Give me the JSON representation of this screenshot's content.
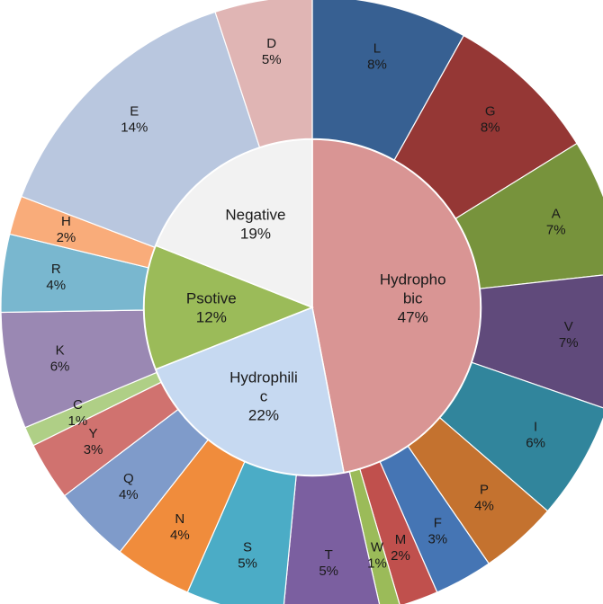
{
  "chart_data": {
    "type": "pie",
    "subtype": "sunburst",
    "title": "",
    "inner": [
      {
        "name": "Hydrophobic",
        "label_lines": [
          "Hydropho",
          "bic"
        ],
        "value": 47,
        "pct": "47%",
        "color": "#d99594"
      },
      {
        "name": "Hydrophilic",
        "label_lines": [
          "Hydrophili",
          "c"
        ],
        "value": 22,
        "pct": "22%",
        "color": "#c6d9f1"
      },
      {
        "name": "Psotive",
        "label_lines": [
          "Psotive"
        ],
        "value": 12,
        "pct": "12%",
        "color": "#9bbb59"
      },
      {
        "name": "Negative",
        "label_lines": [
          "Negative"
        ],
        "value": 19,
        "pct": "19%",
        "color": "#f2f2f2"
      }
    ],
    "outer": [
      {
        "name": "L",
        "value": 8,
        "pct": "8%",
        "color": "#376092",
        "group": "Hydrophobic"
      },
      {
        "name": "G",
        "value": 8,
        "pct": "8%",
        "color": "#953735",
        "group": "Hydrophobic"
      },
      {
        "name": "A",
        "value": 7,
        "pct": "7%",
        "color": "#77933c",
        "group": "Hydrophobic"
      },
      {
        "name": "V",
        "value": 7,
        "pct": "7%",
        "color": "#604a7b",
        "group": "Hydrophobic"
      },
      {
        "name": "I",
        "value": 6,
        "pct": "6%",
        "color": "#31859c",
        "group": "Hydrophobic"
      },
      {
        "name": "P",
        "value": 4,
        "pct": "4%",
        "color": "#c4722f",
        "group": "Hydrophobic"
      },
      {
        "name": "F",
        "value": 3,
        "pct": "3%",
        "color": "#4575b4",
        "group": "Hydrophobic"
      },
      {
        "name": "M",
        "value": 2,
        "pct": "2%",
        "color": "#c0504d",
        "group": "Hydrophobic"
      },
      {
        "name": "W",
        "value": 1,
        "pct": "1%",
        "color": "#9bbb59",
        "group": "Hydrophobic"
      },
      {
        "name": "T",
        "value": 5,
        "pct": "5%",
        "color": "#7b5fa0",
        "group": "Hydrophilic"
      },
      {
        "name": "S",
        "value": 5,
        "pct": "5%",
        "color": "#4bacc6",
        "group": "Hydrophilic"
      },
      {
        "name": "N",
        "value": 4,
        "pct": "4%",
        "color": "#f08c3c",
        "group": "Hydrophilic"
      },
      {
        "name": "Q",
        "value": 4,
        "pct": "4%",
        "color": "#7f9bca",
        "group": "Hydrophilic"
      },
      {
        "name": "Y",
        "value": 3,
        "pct": "3%",
        "color": "#d0726f",
        "group": "Hydrophilic"
      },
      {
        "name": "C",
        "value": 1,
        "pct": "1%",
        "color": "#afcf86",
        "group": "Hydrophilic"
      },
      {
        "name": "K",
        "value": 6,
        "pct": "6%",
        "color": "#9a88b3",
        "group": "Psotive"
      },
      {
        "name": "R",
        "value": 4,
        "pct": "4%",
        "color": "#79b7cf",
        "group": "Psotive"
      },
      {
        "name": "H",
        "value": 2,
        "pct": "2%",
        "color": "#f9ac7a",
        "group": "Psotive"
      },
      {
        "name": "E",
        "value": 14,
        "pct": "14%",
        "color": "#b9c7df",
        "group": "Negative"
      },
      {
        "name": "D",
        "value": 5,
        "pct": "5%",
        "color": "#e0b5b4",
        "group": "Negative"
      }
    ]
  }
}
